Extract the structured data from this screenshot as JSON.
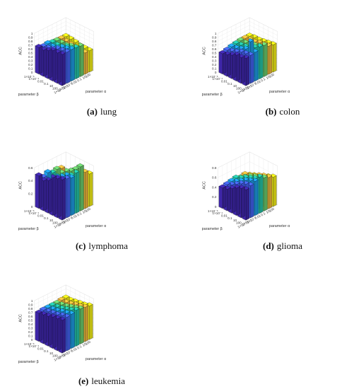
{
  "figure": {
    "palette": [
      "#3e26a8",
      "#4743d2",
      "#4362f1",
      "#2f82fb",
      "#1e9de6",
      "#10b3d0",
      "#24c4a8",
      "#6bcd6d",
      "#b8c74a",
      "#f2b93c",
      "#fad72c",
      "#f5f118"
    ]
  },
  "chart_data": [
    {
      "type": "bar3d",
      "id": "lung",
      "caption_letter": "(a)",
      "caption_text": "lung",
      "zlabel": "ACC",
      "xlabel": "parameter β",
      "ylabel": "parameter α",
      "x_categories": [
        "1×10⁻⁶",
        "1×10⁻⁴",
        "0.01",
        "0.1",
        "10",
        "100"
      ],
      "y_categories": [
        "1×10⁻⁶",
        "1×10⁻⁴",
        "1×10⁻²",
        "0.01",
        "0.1",
        "10",
        "100"
      ],
      "zlim": [
        0,
        1
      ],
      "zticks": [
        "0",
        "0.1",
        "0.2",
        "0.3",
        "0.4",
        "0.5",
        "0.6",
        "0.7",
        "0.8",
        "0.9",
        "1"
      ],
      "values": [
        [
          0.68,
          0.64,
          0.66,
          0.63,
          0.62,
          0.61,
          0.61
        ],
        [
          0.67,
          0.66,
          0.64,
          0.62,
          0.62,
          0.6,
          0.6
        ],
        [
          0.72,
          0.7,
          0.67,
          0.64,
          0.62,
          0.58,
          0.58
        ],
        [
          0.78,
          0.76,
          0.74,
          0.7,
          0.66,
          0.56,
          0.55
        ],
        [
          0.78,
          0.78,
          0.77,
          0.72,
          0.67,
          0.56,
          0.55
        ],
        [
          0.8,
          0.8,
          0.81,
          0.8,
          0.78,
          0.55,
          0.55
        ]
      ]
    },
    {
      "type": "bar3d",
      "id": "colon",
      "caption_letter": "(b)",
      "caption_text": "colon",
      "zlabel": "ACC",
      "xlabel": "parameter β",
      "ylabel": "parameter α",
      "x_categories": [
        "1×10⁻⁶",
        "1×10⁻⁴",
        "0.01",
        "0.1",
        "10",
        "100"
      ],
      "y_categories": [
        "1×10⁻⁶",
        "1×10⁻⁴",
        "1×10⁻²",
        "0.01",
        "0.1",
        "10",
        "100"
      ],
      "zlim": [
        0,
        1
      ],
      "zticks": [
        "0",
        "0.1",
        "0.2",
        "0.3",
        "0.4",
        "0.5",
        "0.6",
        "0.7",
        "0.8",
        "0.9",
        "1"
      ],
      "values": [
        [
          0.52,
          0.55,
          0.58,
          0.6,
          0.62,
          0.62,
          0.62
        ],
        [
          0.55,
          0.58,
          0.6,
          0.62,
          0.62,
          0.64,
          0.64
        ],
        [
          0.6,
          0.62,
          0.64,
          0.64,
          0.66,
          0.64,
          0.64
        ],
        [
          0.66,
          0.68,
          0.7,
          0.7,
          0.68,
          0.68,
          0.66
        ],
        [
          0.66,
          0.7,
          0.95,
          0.74,
          0.72,
          0.7,
          0.68
        ],
        [
          0.7,
          0.72,
          0.74,
          0.82,
          0.8,
          0.72,
          0.7
        ]
      ]
    },
    {
      "type": "bar3d",
      "id": "lymphoma",
      "caption_letter": "(c)",
      "caption_text": "lymphoma",
      "zlabel": "ACC",
      "xlabel": "parameter β",
      "ylabel": "parameter α",
      "x_categories": [
        "1×10⁻⁶",
        "1×10⁻⁴",
        "0.01",
        "0.1",
        "10",
        "100"
      ],
      "y_categories": [
        "1×10⁻⁶",
        "1×10⁻⁴",
        "1×10⁻²",
        "0.01",
        "0.1",
        "10",
        "100"
      ],
      "zlim": [
        0,
        0.6
      ],
      "zticks": [
        "0",
        "0.2",
        "0.4",
        "0.6"
      ],
      "values": [
        [
          0.5,
          0.44,
          0.48,
          0.44,
          0.46,
          0.44,
          0.32
        ],
        [
          0.46,
          0.42,
          0.44,
          0.42,
          0.44,
          0.42,
          0.36
        ],
        [
          0.5,
          0.46,
          0.48,
          0.46,
          0.5,
          0.46,
          0.4
        ],
        [
          0.58,
          0.54,
          0.52,
          0.5,
          0.54,
          0.5,
          0.44
        ],
        [
          0.6,
          0.56,
          0.58,
          0.54,
          0.6,
          0.52,
          0.46
        ],
        [
          0.62,
          0.6,
          0.58,
          0.62,
          0.68,
          0.56,
          0.5
        ]
      ]
    },
    {
      "type": "bar3d",
      "id": "glioma",
      "caption_letter": "(d)",
      "caption_text": "glioma",
      "zlabel": "ACC",
      "xlabel": "parameter β",
      "ylabel": "parameter α",
      "x_categories": [
        "1×10⁻⁶",
        "1×10⁻⁴",
        "0.01",
        "0.1",
        "10",
        "100"
      ],
      "y_categories": [
        "1×10⁻⁶",
        "1×10⁻⁴",
        "1×10⁻²",
        "0.01",
        "0.1",
        "10",
        "100"
      ],
      "zlim": [
        0,
        0.8
      ],
      "zticks": [
        "0",
        "0.2",
        "0.4",
        "0.6",
        "0.8"
      ],
      "values": [
        [
          0.42,
          0.44,
          0.46,
          0.48,
          0.44,
          0.46,
          0.4
        ],
        [
          0.44,
          0.48,
          0.5,
          0.52,
          0.5,
          0.48,
          0.44
        ],
        [
          0.5,
          0.54,
          0.56,
          0.58,
          0.56,
          0.52,
          0.48
        ],
        [
          0.56,
          0.6,
          0.62,
          0.62,
          0.6,
          0.58,
          0.52
        ],
        [
          0.6,
          0.64,
          0.66,
          0.66,
          0.64,
          0.62,
          0.56
        ],
        [
          0.62,
          0.66,
          0.7,
          0.74,
          0.68,
          0.64,
          0.6
        ]
      ]
    },
    {
      "type": "bar3d",
      "id": "leukemia",
      "caption_letter": "(e)",
      "caption_text": "leukemia",
      "zlabel": "ACC",
      "xlabel": "parameter β",
      "ylabel": "parameter α",
      "x_categories": [
        "1×10⁻⁶",
        "1×10⁻⁴",
        "0.01",
        "0.1",
        "10",
        "100"
      ],
      "y_categories": [
        "1×10⁻⁶",
        "1×10⁻⁴",
        "1×10⁻²",
        "0.01",
        "0.1",
        "10",
        "100"
      ],
      "zlim": [
        0,
        1
      ],
      "zticks": [
        "0",
        "0.1",
        "0.2",
        "0.3",
        "0.4",
        "0.5",
        "0.6",
        "0.7",
        "0.8",
        "0.9",
        "1"
      ],
      "values": [
        [
          0.72,
          0.74,
          0.74,
          0.74,
          0.74,
          0.76,
          0.76
        ],
        [
          0.74,
          0.76,
          0.76,
          0.76,
          0.76,
          0.76,
          0.76
        ],
        [
          0.76,
          0.78,
          0.78,
          0.78,
          0.78,
          0.78,
          0.78
        ],
        [
          0.8,
          0.8,
          0.82,
          0.82,
          0.82,
          0.82,
          0.8
        ],
        [
          0.82,
          0.84,
          0.84,
          0.86,
          0.86,
          0.84,
          0.82
        ],
        [
          0.84,
          0.86,
          0.88,
          0.92,
          0.9,
          0.88,
          0.86
        ]
      ]
    }
  ]
}
